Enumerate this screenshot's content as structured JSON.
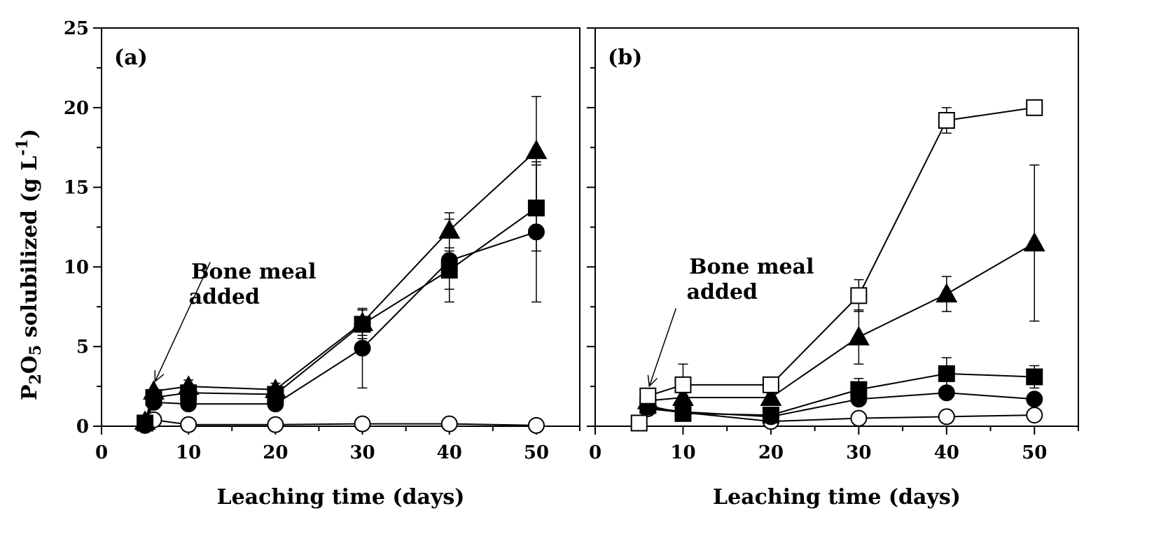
{
  "figure": {
    "ylabel_main": "P",
    "ylabel_sub1": "2",
    "ylabel_mid": "O",
    "ylabel_sub2": "5",
    "ylabel_tail": " solubilized (g L",
    "ylabel_sup": "-1",
    "ylabel_end": ")"
  },
  "chart_data": [
    {
      "type": "line",
      "panel_label": "(a)",
      "xlabel": "Leaching time (days)",
      "xlim": [
        0,
        55
      ],
      "ylim": [
        0,
        25
      ],
      "xticks": [
        0,
        10,
        20,
        30,
        40,
        50
      ],
      "yticks": [
        0,
        5,
        10,
        15,
        20,
        25
      ],
      "annotation": {
        "line1": "Bone meal",
        "line2": "added",
        "points_to": {
          "x": 6,
          "y": 2.2
        }
      },
      "series": [
        {
          "marker": "triangle",
          "fill": "#000000",
          "x": [
            5,
            6,
            10,
            20,
            30,
            40,
            50
          ],
          "y": [
            0.3,
            2.2,
            2.5,
            2.3,
            6.5,
            12.3,
            17.3
          ],
          "err": [
            0,
            0,
            0.4,
            0.4,
            0.8,
            1.1,
            3.4
          ]
        },
        {
          "marker": "square",
          "fill": "#000000",
          "x": [
            5,
            6,
            10,
            20,
            30,
            40,
            50
          ],
          "y": [
            0.2,
            1.8,
            2.1,
            2.0,
            6.4,
            9.8,
            13.7
          ],
          "err": [
            0,
            0,
            0.3,
            0.3,
            0.9,
            1.2,
            2.7
          ]
        },
        {
          "marker": "circle",
          "fill": "#000000",
          "x": [
            5,
            6,
            10,
            20,
            30,
            40,
            50
          ],
          "y": [
            0.1,
            1.5,
            1.4,
            1.4,
            4.9,
            10.4,
            12.2
          ],
          "err": [
            0,
            0,
            0.2,
            0.2,
            2.5,
            2.6,
            4.4
          ]
        },
        {
          "marker": "circle",
          "fill": "#ffffff",
          "x": [
            5,
            6,
            10,
            20,
            30,
            40,
            50
          ],
          "y": [
            0.05,
            0.4,
            0.1,
            0.1,
            0.15,
            0.15,
            0.05
          ],
          "err": [
            0,
            0,
            0,
            0,
            0,
            0,
            0
          ]
        }
      ]
    },
    {
      "type": "line",
      "panel_label": "(b)",
      "xlabel": "Leaching time (days)",
      "xlim": [
        0,
        55
      ],
      "ylim": [
        0,
        25
      ],
      "xticks": [
        0,
        10,
        20,
        30,
        40,
        50
      ],
      "yticks": [
        0,
        5,
        10,
        15,
        20,
        25
      ],
      "annotation": {
        "line1": "Bone meal",
        "line2": "added",
        "points_to": {
          "x": 6,
          "y": 1.9
        }
      },
      "series": [
        {
          "marker": "square",
          "fill": "#ffffff",
          "x": [
            5,
            6,
            10,
            20,
            30,
            40,
            50
          ],
          "y": [
            0.2,
            1.9,
            2.6,
            2.6,
            8.2,
            19.2,
            20.0
          ],
          "err": [
            0,
            0,
            1.3,
            0.2,
            1.0,
            0.8,
            0.2
          ]
        },
        {
          "marker": "triangle",
          "fill": "#000000",
          "x": [
            6,
            10,
            20,
            30,
            40,
            50
          ],
          "y": [
            1.6,
            1.8,
            1.8,
            5.6,
            8.3,
            11.5
          ],
          "err": [
            0,
            0.3,
            0.3,
            1.7,
            1.1,
            4.9
          ]
        },
        {
          "marker": "square",
          "fill": "#000000",
          "x": [
            6,
            10,
            20,
            30,
            40,
            50
          ],
          "y": [
            1.3,
            0.8,
            0.7,
            2.3,
            3.3,
            3.1
          ],
          "err": [
            0,
            0.1,
            0.2,
            0.7,
            1.0,
            0.7
          ]
        },
        {
          "marker": "circle",
          "fill": "#000000",
          "x": [
            6,
            10,
            20,
            30,
            40,
            50
          ],
          "y": [
            1.2,
            0.9,
            0.6,
            1.7,
            2.1,
            1.7
          ],
          "err": [
            0,
            0.1,
            0.1,
            0.3,
            0.4,
            0.3
          ]
        },
        {
          "marker": "circle",
          "fill": "#ffffff",
          "x": [
            6,
            20,
            30,
            40,
            50
          ],
          "y": [
            1.1,
            0.3,
            0.5,
            0.6,
            0.7
          ],
          "err": [
            0,
            0,
            0,
            0,
            0
          ]
        }
      ]
    }
  ]
}
